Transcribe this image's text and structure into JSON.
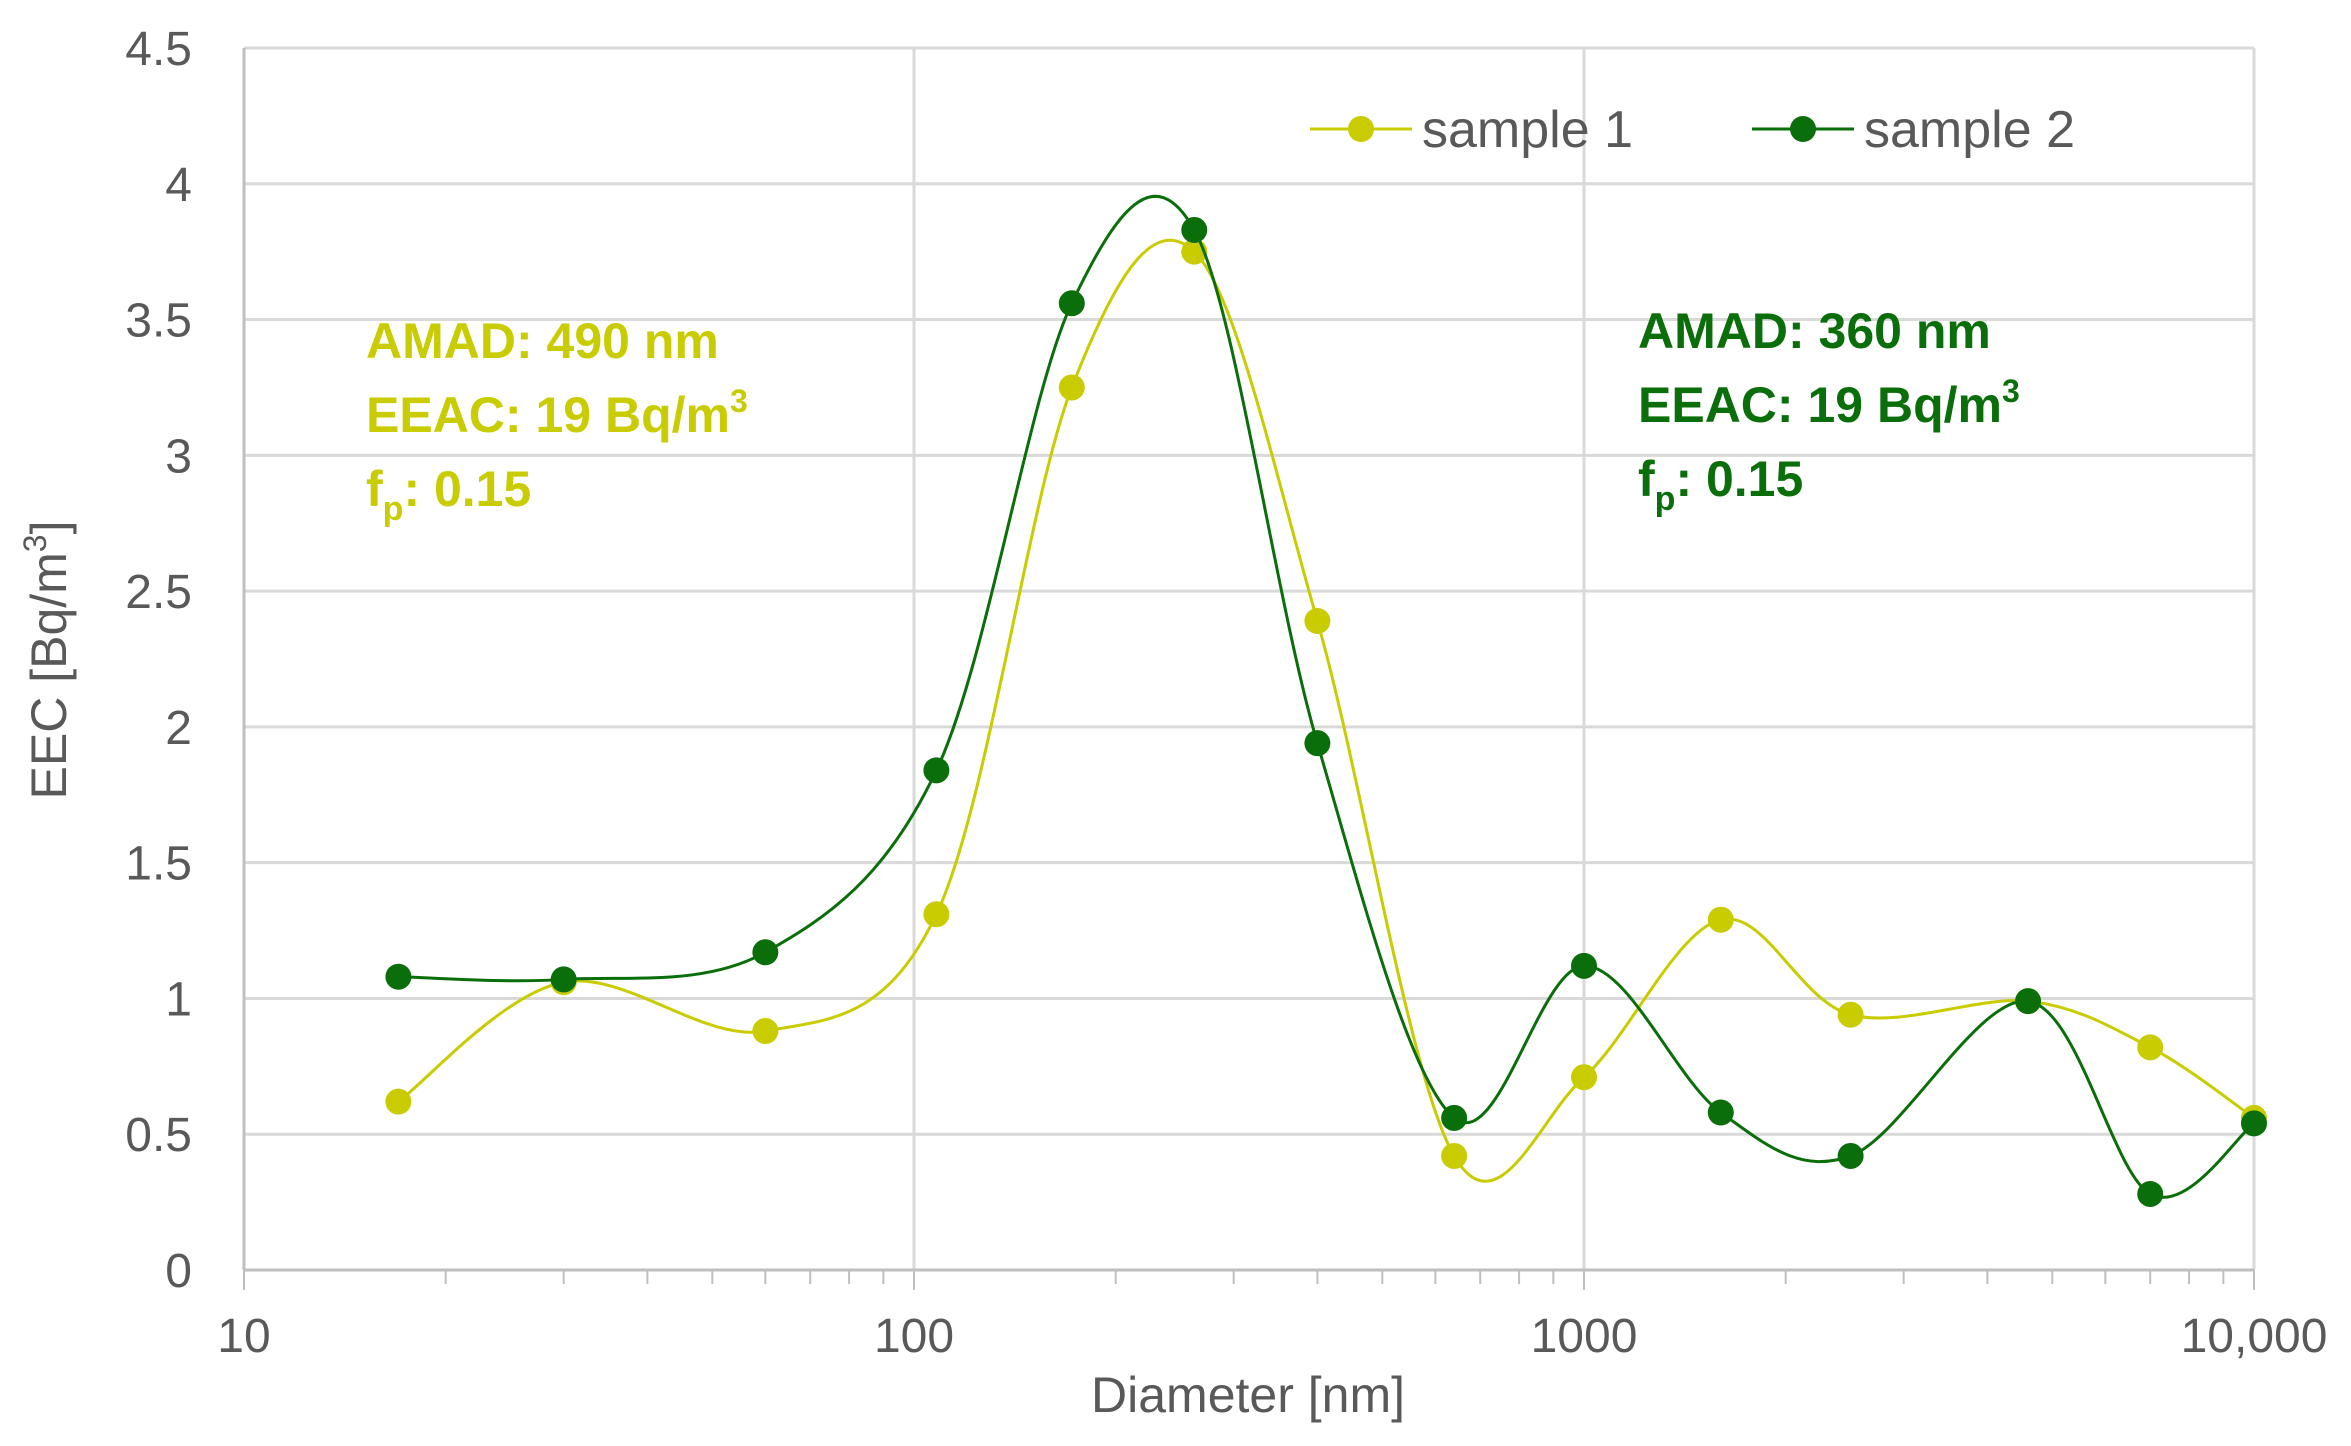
{
  "chart_data": {
    "type": "line",
    "title": "",
    "xlabel": "Diameter [nm]",
    "ylabel_main": "EEC [Bq/m",
    "ylabel_sup": "3",
    "ylabel_tail": "]",
    "xscale": "log",
    "xlim": [
      10,
      10000
    ],
    "ylim": [
      0,
      4.5
    ],
    "grid": true,
    "x_ticks": [
      10,
      100,
      1000,
      10000
    ],
    "x_tick_labels": [
      "10",
      "100",
      "1000",
      "10,000"
    ],
    "y_ticks": [
      0,
      0.5,
      1,
      1.5,
      2,
      2.5,
      3,
      3.5,
      4,
      4.5
    ],
    "y_tick_labels": [
      "0",
      "0.5",
      "1",
      "1.5",
      "2",
      "2.5",
      "3",
      "3.5",
      "4",
      "4.5"
    ],
    "legend_position": "top-right",
    "series": [
      {
        "name": "sample 1",
        "color": "#c8cc00",
        "x": [
          17,
          30,
          60,
          108,
          172,
          262,
          400,
          640,
          1000,
          1600,
          2500,
          4600,
          7000,
          10000
        ],
        "values": [
          0.62,
          1.06,
          0.88,
          1.31,
          3.25,
          3.75,
          2.39,
          0.42,
          0.71,
          1.29,
          0.94,
          0.99,
          0.82,
          0.56
        ]
      },
      {
        "name": "sample 2",
        "color": "#0a6e0a",
        "x": [
          17,
          30,
          60,
          108,
          172,
          262,
          400,
          640,
          1000,
          1600,
          2500,
          4600,
          7000,
          10000
        ],
        "values": [
          1.08,
          1.07,
          1.17,
          1.84,
          3.56,
          3.83,
          1.94,
          0.56,
          1.12,
          0.58,
          0.42,
          0.99,
          0.28,
          0.54
        ]
      }
    ],
    "annotations": [
      {
        "series": "sample 1",
        "color": "#c8cc00",
        "amad": "AMAD: 490 nm",
        "eeac_main": "EEAC: 19 Bq/m",
        "eeac_sup": "3",
        "fp_main": "f",
        "fp_sub": "p",
        "fp_value": ": 0.15"
      },
      {
        "series": "sample 2",
        "color": "#0a6e0a",
        "amad": "AMAD: 360 nm",
        "eeac_main": "EEAC: 19 Bq/m",
        "eeac_sup": "3",
        "fp_main": "f",
        "fp_sub": "p",
        "fp_value": ": 0.15"
      }
    ]
  }
}
